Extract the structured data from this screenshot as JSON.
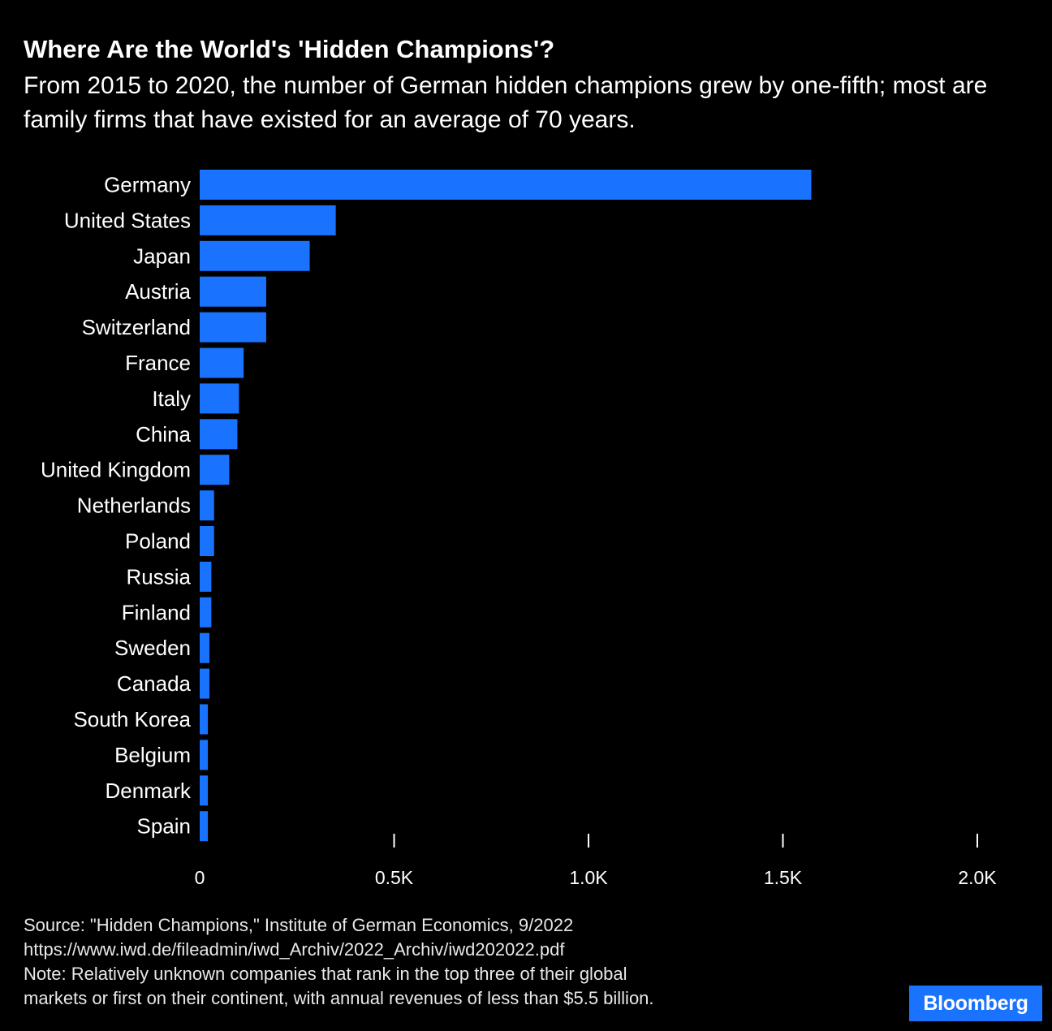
{
  "header": {
    "title": "Where Are the World's 'Hidden Champions'?",
    "subtitle": "From 2015 to 2020, the number of German hidden champions grew by one-fifth; most are family firms that have existed for an average of 70 years."
  },
  "chart_data": {
    "type": "bar",
    "orientation": "horizontal",
    "categories": [
      "Germany",
      "United States",
      "Japan",
      "Austria",
      "Switzerland",
      "France",
      "Italy",
      "China",
      "United Kingdom",
      "Netherlands",
      "Poland",
      "Russia",
      "Finland",
      "Sweden",
      "Canada",
      "South Korea",
      "Belgium",
      "Denmark",
      "Spain"
    ],
    "values": [
      1573,
      350,
      283,
      171,
      171,
      113,
      101,
      97,
      76,
      37,
      37,
      30,
      30,
      25,
      25,
      21,
      21,
      21,
      21
    ],
    "xlim": [
      0,
      2000
    ],
    "x_ticks": [
      0,
      500,
      1000,
      1500,
      2000
    ],
    "x_tick_labels": [
      "0",
      "0.5K",
      "1.0K",
      "1.5K",
      "2.0K"
    ],
    "bar_color": "#1a73ff",
    "grid": false,
    "legend": "none"
  },
  "footer": {
    "source": "Source: \"Hidden Champions,\" Institute of German Economics, 9/2022",
    "url": "https://www.iwd.de/fileadmin/iwd_Archiv/2022_Archiv/iwd202022.pdf",
    "note_line1": "Note: Relatively unknown companies that rank in the top three of their global",
    "note_line2": "markets or first on their continent, with annual revenues of less than $5.5 billion."
  },
  "branding": {
    "logo_text": "Bloomberg",
    "logo_color": "#1a73ff"
  },
  "colors": {
    "background": "#000000",
    "text": "#ffffff"
  }
}
